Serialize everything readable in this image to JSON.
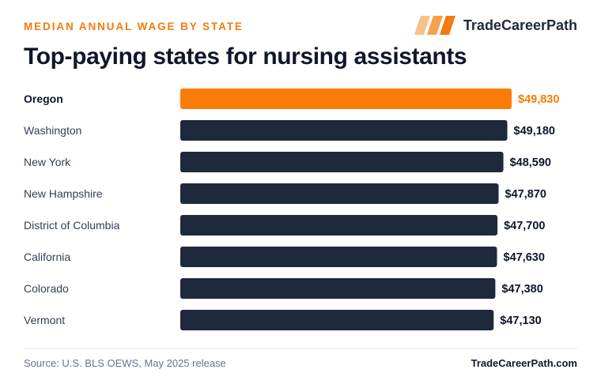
{
  "header": {
    "kicker": "MEDIAN ANNUAL WAGE BY STATE",
    "brand_name": "TradeCareerPath",
    "title": "Top-paying states for nursing assistants"
  },
  "chart_data": {
    "type": "bar",
    "orientation": "horizontal",
    "categories": [
      "Oregon",
      "Washington",
      "New York",
      "New Hampshire",
      "District of Columbia",
      "California",
      "Colorado",
      "Vermont"
    ],
    "values": [
      49830,
      49180,
      48590,
      47870,
      47700,
      47630,
      47380,
      47130
    ],
    "value_labels": [
      "$49,830",
      "$49,180",
      "$48,590",
      "$47,870",
      "$47,700",
      "$47,630",
      "$47,380",
      "$47,130"
    ],
    "highlight_index": 0,
    "colors": {
      "highlight": "#f97c08",
      "default": "#1e293b"
    },
    "xlim": [
      0,
      49830
    ]
  },
  "footer": {
    "source": "Source: U.S. BLS OEWS, May 2025 release",
    "site": "TradeCareerPath.com"
  },
  "icons": {
    "brand_mark": "three-slanted-bars-logo"
  }
}
